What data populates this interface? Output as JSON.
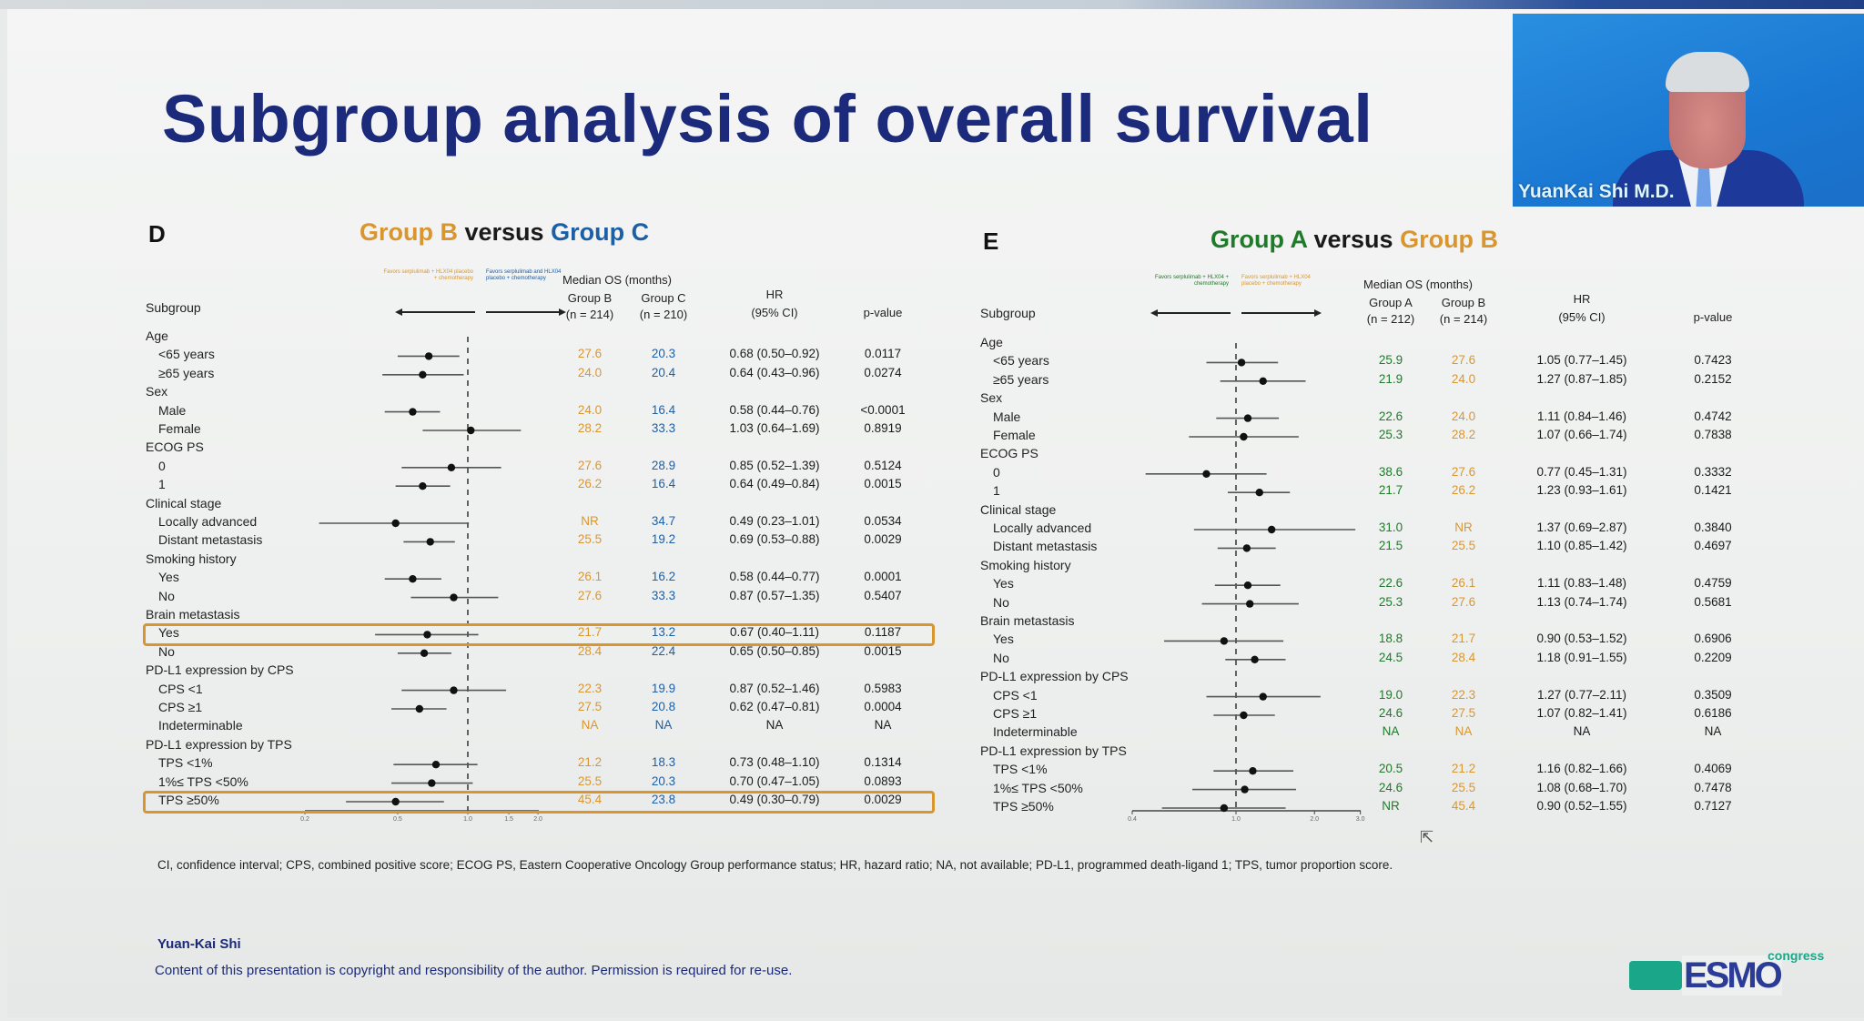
{
  "slide": {
    "title": "Subgroup analysis of overall survival",
    "footnote": "CI, confidence interval; CPS, combined positive score; ECOG PS, Eastern Cooperative Oncology Group performance status; HR, hazard ratio; NA, not available; PD-L1, programmed death-ligand 1; TPS, tumor proportion score.",
    "author": "Yuan-Kai Shi",
    "copyright": "Content of this presentation is copyright and responsibility of the author. Permission is required for re-use.",
    "logo": {
      "main": "ESMO",
      "sub": "congress"
    },
    "colors": {
      "title": "#1b2a7a",
      "groupA": "#1f7a2a",
      "groupB": "#d9962f",
      "groupC": "#1d5fa5",
      "highlight": "#d9962f"
    }
  },
  "webcam": {
    "speaker_name": "YuanKai Shi M.D."
  },
  "chart_data": [
    {
      "type": "forest",
      "panel": "D",
      "title_parts": [
        {
          "text": "Group B",
          "color": "orange"
        },
        {
          "text": " versus ",
          "color": "dark"
        },
        {
          "text": "Group C",
          "color": "blue"
        }
      ],
      "favors_left": "Favors serplulimab + HLX04 placebo + chemotherapy",
      "favors_right": "Favors serplulimab and HLX04 placebo + chemotherapy",
      "headers": {
        "subgroup": "Subgroup",
        "median_os": "Median OS (months)",
        "group1": "Group B",
        "group1_n": "(n = 214)",
        "group2": "Group C",
        "group2_n": "(n = 210)",
        "hr": "HR",
        "hr_ci": "(95% CI)",
        "pvalue": "p-value"
      },
      "xscale": "log",
      "xlim": [
        0.2,
        2.0
      ],
      "xticks": [
        0.2,
        0.5,
        1.0,
        1.5,
        2.0
      ],
      "xtick_labels": [
        "0.2",
        "0.5",
        "1.0",
        "1.5",
        "2.0"
      ],
      "reference_line": 1.0,
      "rows": [
        {
          "label": "Age",
          "header": true
        },
        {
          "label": "<65 years",
          "g1": "27.6",
          "g2": "20.3",
          "hr": 0.68,
          "lo": 0.5,
          "hi": 0.92,
          "hr_text": "0.68 (0.50–0.92)",
          "p": "0.0117"
        },
        {
          "label": "≥65 years",
          "g1": "24.0",
          "g2": "20.4",
          "hr": 0.64,
          "lo": 0.43,
          "hi": 0.96,
          "hr_text": "0.64 (0.43–0.96)",
          "p": "0.0274"
        },
        {
          "label": "Sex",
          "header": true
        },
        {
          "label": "Male",
          "g1": "24.0",
          "g2": "16.4",
          "hr": 0.58,
          "lo": 0.44,
          "hi": 0.76,
          "hr_text": "0.58 (0.44–0.76)",
          "p": "<0.0001"
        },
        {
          "label": "Female",
          "g1": "28.2",
          "g2": "33.3",
          "hr": 1.03,
          "lo": 0.64,
          "hi": 1.69,
          "hr_text": "1.03 (0.64–1.69)",
          "p": "0.8919"
        },
        {
          "label": "ECOG PS",
          "header": true
        },
        {
          "label": "0",
          "g1": "27.6",
          "g2": "28.9",
          "hr": 0.85,
          "lo": 0.52,
          "hi": 1.39,
          "hr_text": "0.85 (0.52–1.39)",
          "p": "0.5124"
        },
        {
          "label": "1",
          "g1": "26.2",
          "g2": "16.4",
          "hr": 0.64,
          "lo": 0.49,
          "hi": 0.84,
          "hr_text": "0.64 (0.49–0.84)",
          "p": "0.0015"
        },
        {
          "label": "Clinical stage",
          "header": true
        },
        {
          "label": "Locally advanced",
          "g1": "NR",
          "g2": "34.7",
          "hr": 0.49,
          "lo": 0.23,
          "hi": 1.01,
          "hr_text": "0.49 (0.23–1.01)",
          "p": "0.0534"
        },
        {
          "label": "Distant metastasis",
          "g1": "25.5",
          "g2": "19.2",
          "hr": 0.69,
          "lo": 0.53,
          "hi": 0.88,
          "hr_text": "0.69 (0.53–0.88)",
          "p": "0.0029"
        },
        {
          "label": "Smoking history",
          "header": true
        },
        {
          "label": "Yes",
          "g1": "26.1",
          "g2": "16.2",
          "hr": 0.58,
          "lo": 0.44,
          "hi": 0.77,
          "hr_text": "0.58 (0.44–0.77)",
          "p": "0.0001"
        },
        {
          "label": "No",
          "g1": "27.6",
          "g2": "33.3",
          "hr": 0.87,
          "lo": 0.57,
          "hi": 1.35,
          "hr_text": "0.87 (0.57–1.35)",
          "p": "0.5407"
        },
        {
          "label": "Brain metastasis",
          "header": true
        },
        {
          "label": "Yes",
          "g1": "21.7",
          "g2": "13.2",
          "hr": 0.67,
          "lo": 0.4,
          "hi": 1.11,
          "hr_text": "0.67 (0.40–1.11)",
          "p": "0.1187",
          "highlight": true
        },
        {
          "label": "No",
          "g1": "28.4",
          "g2": "22.4",
          "hr": 0.65,
          "lo": 0.5,
          "hi": 0.85,
          "hr_text": "0.65 (0.50–0.85)",
          "p": "0.0015"
        },
        {
          "label": "PD-L1 expression by CPS",
          "header": true
        },
        {
          "label": "CPS <1",
          "g1": "22.3",
          "g2": "19.9",
          "hr": 0.87,
          "lo": 0.52,
          "hi": 1.46,
          "hr_text": "0.87 (0.52–1.46)",
          "p": "0.5983"
        },
        {
          "label": "CPS ≥1",
          "g1": "27.5",
          "g2": "20.8",
          "hr": 0.62,
          "lo": 0.47,
          "hi": 0.81,
          "hr_text": "0.62 (0.47–0.81)",
          "p": "0.0004"
        },
        {
          "label": "Indeterminable",
          "g1": "NA",
          "g2": "NA",
          "hr": null,
          "hr_text": "NA",
          "p": "NA"
        },
        {
          "label": "PD-L1 expression by TPS",
          "header": true
        },
        {
          "label": "TPS <1%",
          "g1": "21.2",
          "g2": "18.3",
          "hr": 0.73,
          "lo": 0.48,
          "hi": 1.1,
          "hr_text": "0.73 (0.48–1.10)",
          "p": "0.1314"
        },
        {
          "label": "1%≤ TPS <50%",
          "g1": "25.5",
          "g2": "20.3",
          "hr": 0.7,
          "lo": 0.47,
          "hi": 1.05,
          "hr_text": "0.70 (0.47–1.05)",
          "p": "0.0893"
        },
        {
          "label": "TPS ≥50%",
          "g1": "45.4",
          "g2": "23.8",
          "hr": 0.49,
          "lo": 0.3,
          "hi": 0.79,
          "hr_text": "0.49 (0.30–0.79)",
          "p": "0.0029",
          "highlight": true
        }
      ]
    },
    {
      "type": "forest",
      "panel": "E",
      "title_parts": [
        {
          "text": "Group A",
          "color": "green"
        },
        {
          "text": " versus ",
          "color": "dark"
        },
        {
          "text": "Group B",
          "color": "orange"
        }
      ],
      "favors_left": "Favors serplulimab + HLX04 + chemotherapy",
      "favors_right": "Favors serplulimab + HLX04 placebo + chemotherapy",
      "headers": {
        "subgroup": "Subgroup",
        "median_os": "Median OS (months)",
        "group1": "Group A",
        "group1_n": "(n = 212)",
        "group2": "Group B",
        "group2_n": "(n = 214)",
        "hr": "HR",
        "hr_ci": "(95% CI)",
        "pvalue": "p-value"
      },
      "xscale": "log",
      "xlim": [
        0.4,
        3.0
      ],
      "xticks": [
        0.4,
        1.0,
        2.0,
        3.0
      ],
      "xtick_labels": [
        "0.4",
        "1.0",
        "2.0",
        "3.0"
      ],
      "reference_line": 1.0,
      "rows": [
        {
          "label": "Age",
          "header": true
        },
        {
          "label": "<65 years",
          "g1": "25.9",
          "g2": "27.6",
          "hr": 1.05,
          "lo": 0.77,
          "hi": 1.45,
          "hr_text": "1.05 (0.77–1.45)",
          "p": "0.7423"
        },
        {
          "label": "≥65 years",
          "g1": "21.9",
          "g2": "24.0",
          "hr": 1.27,
          "lo": 0.87,
          "hi": 1.85,
          "hr_text": "1.27 (0.87–1.85)",
          "p": "0.2152"
        },
        {
          "label": "Sex",
          "header": true
        },
        {
          "label": "Male",
          "g1": "22.6",
          "g2": "24.0",
          "hr": 1.11,
          "lo": 0.84,
          "hi": 1.46,
          "hr_text": "1.11 (0.84–1.46)",
          "p": "0.4742"
        },
        {
          "label": "Female",
          "g1": "25.3",
          "g2": "28.2",
          "hr": 1.07,
          "lo": 0.66,
          "hi": 1.74,
          "hr_text": "1.07 (0.66–1.74)",
          "p": "0.7838"
        },
        {
          "label": "ECOG PS",
          "header": true
        },
        {
          "label": "0",
          "g1": "38.6",
          "g2": "27.6",
          "hr": 0.77,
          "lo": 0.45,
          "hi": 1.31,
          "hr_text": "0.77 (0.45–1.31)",
          "p": "0.3332"
        },
        {
          "label": "1",
          "g1": "21.7",
          "g2": "26.2",
          "hr": 1.23,
          "lo": 0.93,
          "hi": 1.61,
          "hr_text": "1.23 (0.93–1.61)",
          "p": "0.1421"
        },
        {
          "label": "Clinical stage",
          "header": true
        },
        {
          "label": "Locally advanced",
          "g1": "31.0",
          "g2": "NR",
          "hr": 1.37,
          "lo": 0.69,
          "hi": 2.87,
          "hr_text": "1.37 (0.69–2.87)",
          "p": "0.3840"
        },
        {
          "label": "Distant metastasis",
          "g1": "21.5",
          "g2": "25.5",
          "hr": 1.1,
          "lo": 0.85,
          "hi": 1.42,
          "hr_text": "1.10 (0.85–1.42)",
          "p": "0.4697"
        },
        {
          "label": "Smoking history",
          "header": true
        },
        {
          "label": "Yes",
          "g1": "22.6",
          "g2": "26.1",
          "hr": 1.11,
          "lo": 0.83,
          "hi": 1.48,
          "hr_text": "1.11 (0.83–1.48)",
          "p": "0.4759"
        },
        {
          "label": "No",
          "g1": "25.3",
          "g2": "27.6",
          "hr": 1.13,
          "lo": 0.74,
          "hi": 1.74,
          "hr_text": "1.13 (0.74–1.74)",
          "p": "0.5681"
        },
        {
          "label": "Brain metastasis",
          "header": true
        },
        {
          "label": "Yes",
          "g1": "18.8",
          "g2": "21.7",
          "hr": 0.9,
          "lo": 0.53,
          "hi": 1.52,
          "hr_text": "0.90 (0.53–1.52)",
          "p": "0.6906"
        },
        {
          "label": "No",
          "g1": "24.5",
          "g2": "28.4",
          "hr": 1.18,
          "lo": 0.91,
          "hi": 1.55,
          "hr_text": "1.18 (0.91–1.55)",
          "p": "0.2209"
        },
        {
          "label": "PD-L1 expression by CPS",
          "header": true
        },
        {
          "label": "CPS <1",
          "g1": "19.0",
          "g2": "22.3",
          "hr": 1.27,
          "lo": 0.77,
          "hi": 2.11,
          "hr_text": "1.27 (0.77–2.11)",
          "p": "0.3509"
        },
        {
          "label": "CPS ≥1",
          "g1": "24.6",
          "g2": "27.5",
          "hr": 1.07,
          "lo": 0.82,
          "hi": 1.41,
          "hr_text": "1.07 (0.82–1.41)",
          "p": "0.6186"
        },
        {
          "label": "Indeterminable",
          "g1": "NA",
          "g2": "NA",
          "hr": null,
          "hr_text": "NA",
          "p": "NA"
        },
        {
          "label": "PD-L1 expression by TPS",
          "header": true
        },
        {
          "label": "TPS <1%",
          "g1": "20.5",
          "g2": "21.2",
          "hr": 1.16,
          "lo": 0.82,
          "hi": 1.66,
          "hr_text": "1.16 (0.82–1.66)",
          "p": "0.4069"
        },
        {
          "label": "1%≤ TPS <50%",
          "g1": "24.6",
          "g2": "25.5",
          "hr": 1.08,
          "lo": 0.68,
          "hi": 1.7,
          "hr_text": "1.08 (0.68–1.70)",
          "p": "0.7478"
        },
        {
          "label": "TPS ≥50%",
          "g1": "NR",
          "g2": "45.4",
          "hr": 0.9,
          "lo": 0.52,
          "hi": 1.55,
          "hr_text": "0.90 (0.52–1.55)",
          "p": "0.7127"
        }
      ]
    }
  ]
}
